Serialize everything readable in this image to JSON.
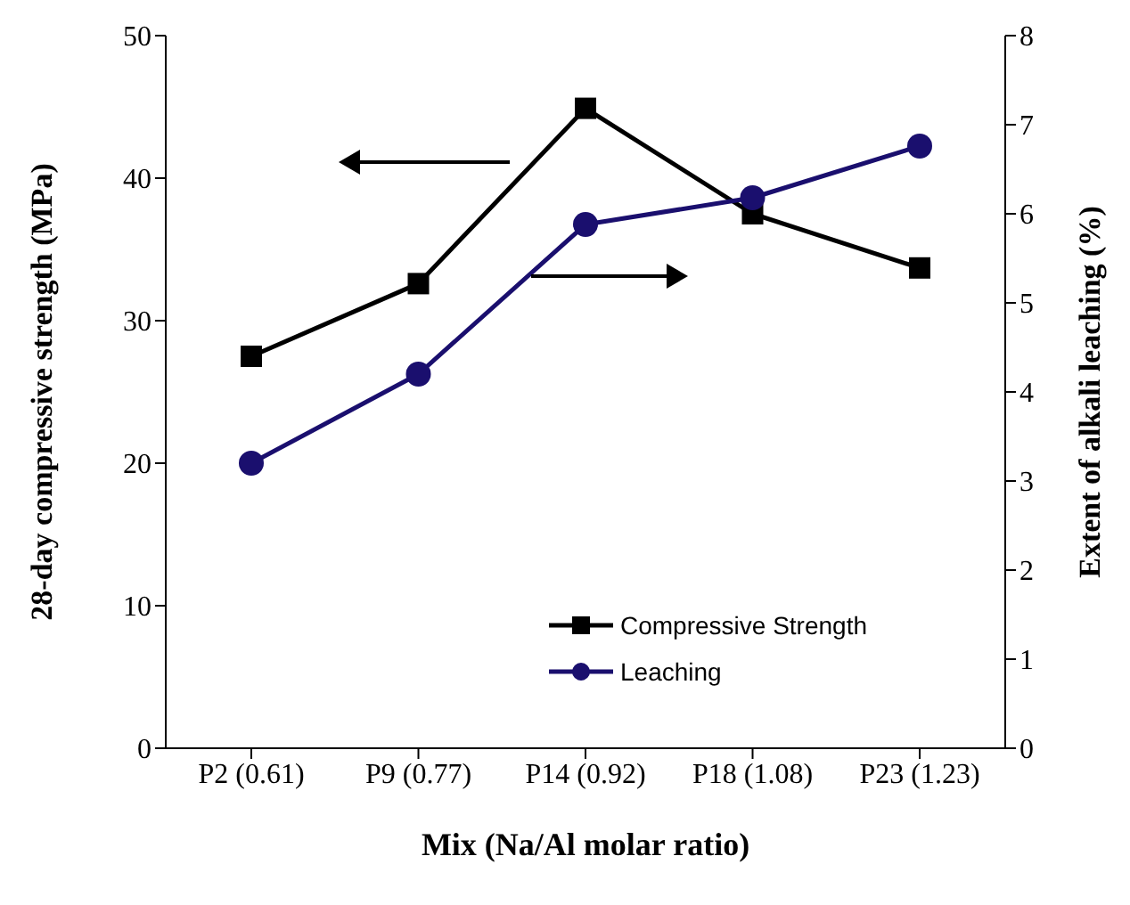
{
  "chart_data": {
    "type": "line",
    "xlabel": "Mix (Na/Al molar ratio)",
    "ylabel": "28-day compressive strength (MPa)",
    "y2label": "Extent of alkali leaching (%)",
    "categories": [
      "P2 (0.61)",
      "P9 (0.77)",
      "P14 (0.92)",
      "P18 (1.08)",
      "P23 (1.23)"
    ],
    "series": [
      {
        "name": "Compressive Strength",
        "color": "#000000",
        "marker": "square",
        "values": [
          27.5,
          32.6,
          44.9,
          37.5,
          33.7
        ]
      },
      {
        "name": "Leaching",
        "color": "#1a0f6e",
        "marker": "circle",
        "axis": "y2",
        "values": [
          3.2,
          4.2,
          5.88,
          6.18,
          6.76
        ]
      }
    ],
    "ylim": [
      0,
      50
    ],
    "yticks": [
      0,
      10,
      20,
      30,
      40,
      50
    ],
    "y2lim": [
      0,
      8
    ],
    "y2ticks": [
      0,
      1,
      2,
      3,
      4,
      5,
      6,
      7,
      8
    ],
    "grid": false,
    "legend": "bottom right",
    "line_style": "solid"
  }
}
